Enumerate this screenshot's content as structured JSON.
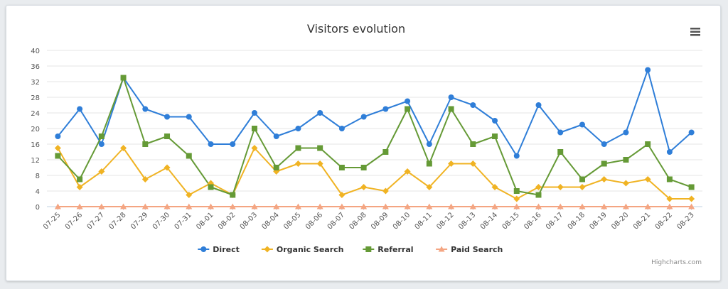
{
  "chart_data": {
    "type": "line",
    "title": "Visitors evolution",
    "categories": [
      "07-25",
      "07-26",
      "07-27",
      "07-28",
      "07-29",
      "07-30",
      "07-31",
      "08-01",
      "08-02",
      "08-03",
      "08-04",
      "08-05",
      "08-06",
      "08-07",
      "08-08",
      "08-09",
      "08-10",
      "08-11",
      "08-12",
      "08-13",
      "08-14",
      "08-15",
      "08-16",
      "08-17",
      "08-18",
      "08-19",
      "08-20",
      "08-21",
      "08-22",
      "08-23"
    ],
    "ylim": [
      0,
      40
    ],
    "yticks": [
      0,
      4,
      8,
      12,
      16,
      20,
      24,
      28,
      32,
      36,
      40
    ],
    "grid": true,
    "legend_position": "bottom-center",
    "series": [
      {
        "name": "Direct",
        "color": "#2f7ed8",
        "marker": "circle",
        "values": [
          18,
          25,
          16,
          33,
          25,
          23,
          23,
          16,
          16,
          24,
          18,
          20,
          24,
          20,
          23,
          25,
          27,
          16,
          28,
          26,
          22,
          13,
          26,
          19,
          21,
          16,
          19,
          35,
          14,
          19
        ]
      },
      {
        "name": "Organic Search",
        "color": "#f0b323",
        "marker": "diamond",
        "values": [
          15,
          5,
          9,
          15,
          7,
          10,
          3,
          6,
          3,
          15,
          9,
          11,
          11,
          3,
          5,
          4,
          9,
          5,
          11,
          11,
          5,
          2,
          5,
          5,
          5,
          7,
          6,
          7,
          2,
          2
        ]
      },
      {
        "name": "Referral",
        "color": "#659a36",
        "marker": "square",
        "values": [
          13,
          7,
          18,
          33,
          16,
          18,
          13,
          5,
          3,
          20,
          10,
          15,
          15,
          10,
          10,
          14,
          25,
          11,
          25,
          16,
          18,
          4,
          3,
          14,
          7,
          11,
          12,
          16,
          7,
          5
        ]
      },
      {
        "name": "Paid Search",
        "color": "#f4a582",
        "marker": "triangle",
        "values": [
          0,
          0,
          0,
          0,
          0,
          0,
          0,
          0,
          0,
          0,
          0,
          0,
          0,
          0,
          0,
          0,
          0,
          0,
          0,
          0,
          0,
          0,
          0,
          0,
          0,
          0,
          0,
          0,
          0,
          0
        ]
      }
    ]
  },
  "credits": "Highcharts.com",
  "menu_icon": "hamburger-menu-icon"
}
